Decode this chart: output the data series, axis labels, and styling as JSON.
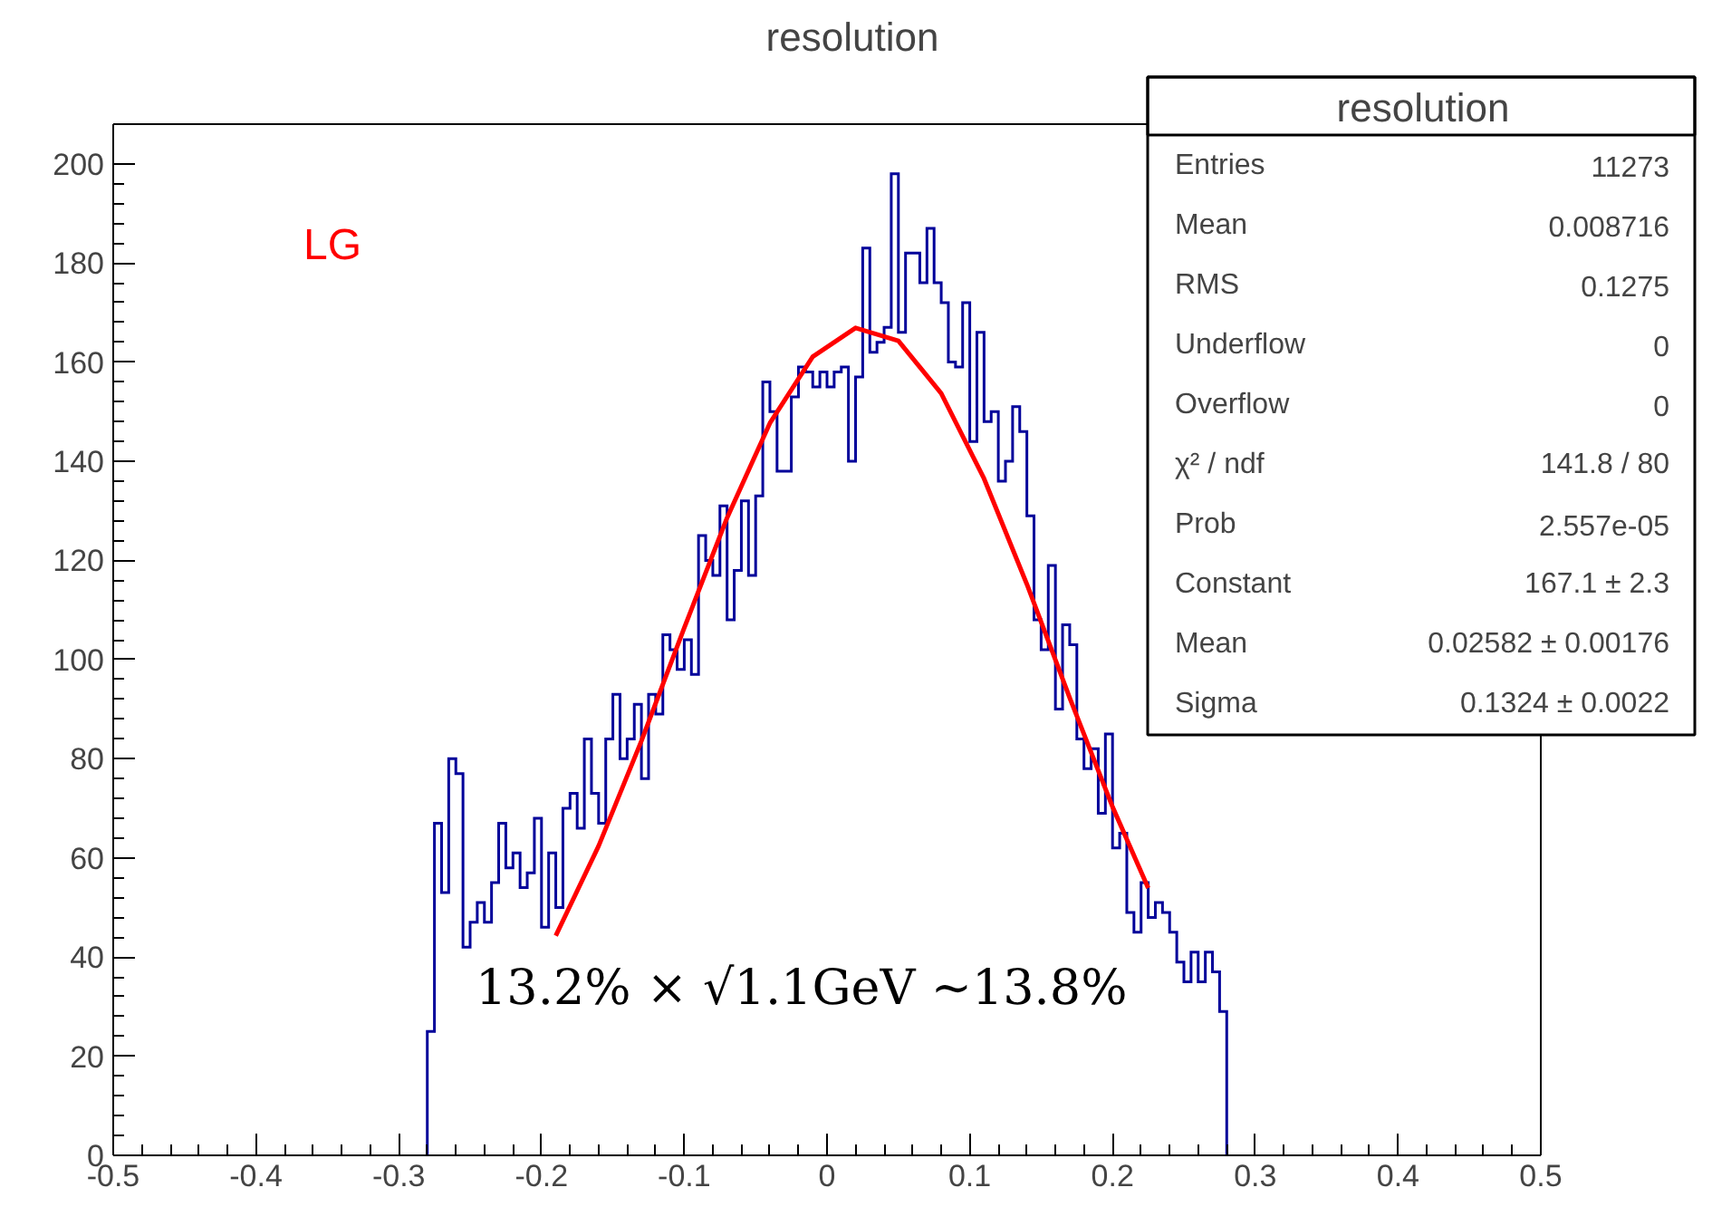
{
  "chart_data": {
    "type": "histogram",
    "title": "resolution",
    "color": "#00009a",
    "bins": [
      -0.28,
      -0.275,
      -0.27,
      -0.265,
      -0.26,
      -0.255,
      -0.25,
      -0.245,
      -0.24,
      -0.235,
      -0.23,
      -0.225,
      -0.22,
      -0.215,
      -0.21,
      -0.205,
      -0.2,
      -0.195,
      -0.19,
      -0.185,
      -0.18,
      -0.175,
      -0.17,
      -0.165,
      -0.16,
      -0.155,
      -0.15,
      -0.145,
      -0.14,
      -0.135,
      -0.13,
      -0.125,
      -0.12,
      -0.115,
      -0.11,
      -0.105,
      -0.1,
      -0.095,
      -0.09,
      -0.085,
      -0.08,
      -0.075,
      -0.07,
      -0.065,
      -0.06,
      -0.055,
      -0.05,
      -0.045,
      -0.04,
      -0.035,
      -0.03,
      -0.025,
      -0.02,
      -0.015,
      -0.01,
      -0.005,
      0.0,
      0.005,
      0.01,
      0.015,
      0.02,
      0.025,
      0.03,
      0.035,
      0.04,
      0.045,
      0.05,
      0.055,
      0.06,
      0.065,
      0.07,
      0.075,
      0.08,
      0.085,
      0.09,
      0.095,
      0.1,
      0.105,
      0.11,
      0.115,
      0.12,
      0.125,
      0.13,
      0.135,
      0.14,
      0.145,
      0.15,
      0.155,
      0.16,
      0.165,
      0.17,
      0.175,
      0.18,
      0.185,
      0.19,
      0.195,
      0.2,
      0.205,
      0.21,
      0.215,
      0.22,
      0.225,
      0.23,
      0.235,
      0.24,
      0.245,
      0.25,
      0.255,
      0.26,
      0.265,
      0.27,
      0.275,
      0.28
    ],
    "values": [
      25,
      67,
      53,
      80,
      77,
      42,
      47,
      51,
      47,
      55,
      67,
      58,
      61,
      54,
      57,
      68,
      46,
      61,
      50,
      70,
      73,
      66,
      84,
      73,
      67,
      84,
      93,
      80,
      84,
      91,
      76,
      93,
      89,
      105,
      102,
      98,
      104,
      97,
      125,
      120,
      117,
      131,
      108,
      118,
      132,
      117,
      133,
      156,
      150,
      138,
      138,
      153,
      159,
      158,
      155,
      158,
      155,
      158,
      159,
      140,
      157,
      183,
      162,
      164,
      167,
      198,
      166,
      182,
      182,
      176,
      187,
      176,
      172,
      160,
      159,
      172,
      144,
      166,
      148,
      150,
      136,
      140,
      151,
      146,
      129,
      108,
      102,
      119,
      90,
      107,
      103,
      84,
      78,
      82,
      69,
      85,
      62,
      65,
      49,
      45,
      55,
      48,
      51,
      49,
      45,
      39,
      35,
      41,
      35,
      41,
      37,
      29
    ],
    "series": [
      {
        "type": "line",
        "color": "#ff0000",
        "x": [
          -0.19,
          -0.16,
          -0.13,
          -0.1,
          -0.07,
          -0.04,
          -0.01,
          0.02,
          0.05,
          0.08,
          0.11,
          0.14,
          0.17,
          0.2,
          0.225
        ],
        "values": [
          44.3,
          62.4,
          83.6,
          106.4,
          128.6,
          147.7,
          161.1,
          166.9,
          164.3,
          153.7,
          136.5,
          115.2,
          92.3,
          70.3,
          53.9
        ]
      }
    ],
    "xlim": [
      -0.5,
      0.5
    ],
    "xticks": [
      -0.5,
      -0.4,
      -0.3,
      -0.2,
      -0.1,
      0,
      0.1,
      0.2,
      0.3,
      0.4,
      0.5
    ],
    "ylim": [
      0,
      208
    ],
    "yticks": [
      0,
      20,
      40,
      60,
      80,
      100,
      120,
      140,
      160,
      180,
      200
    ],
    "grid": false,
    "annotations": [
      "LG",
      "13.2% × √1.1GeV ~13.8%",
      "resolution",
      "Entries",
      "11273",
      "Mean",
      "0.008716",
      "RMS",
      "0.1275",
      "Underflow",
      "0",
      "Overflow",
      "0",
      "χ² / ndf",
      "141.8 / 80",
      "Prob",
      "2.557e-05",
      "Constant",
      "167.1 ± 2.3",
      "Mean",
      "0.02582 ± 0.00176",
      "Sigma",
      "0.1324 ± 0.0022"
    ]
  }
}
